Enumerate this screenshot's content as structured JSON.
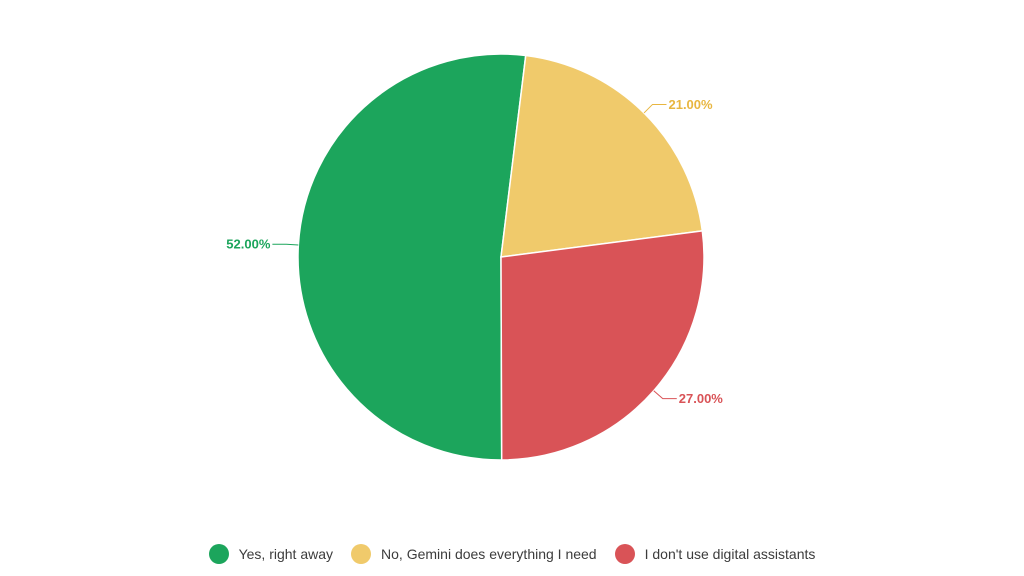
{
  "chart_data": {
    "type": "pie",
    "title": "",
    "slices": [
      {
        "name": "Yes, right away",
        "value": 52.0,
        "label": "52.00%",
        "color": "#1ca55c"
      },
      {
        "name": "No, Gemini does everything I need",
        "value": 21.0,
        "label": "21.00%",
        "color": "#f0ca6b"
      },
      {
        "name": "I don't use digital assistants",
        "value": 27.0,
        "label": "27.00%",
        "color": "#d95357"
      }
    ],
    "legend_position": "bottom",
    "label_colors": {
      "Yes, right away": "#1ca55c",
      "No, Gemini does everything I need": "#e8b640",
      "I don't use digital assistants": "#d95357"
    }
  }
}
